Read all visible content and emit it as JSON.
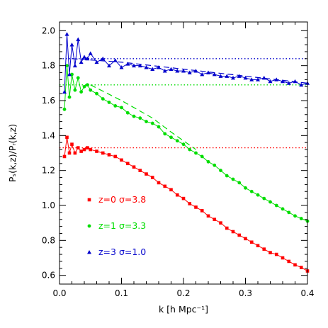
{
  "chart_data": {
    "type": "line",
    "xlabel": "k  [h Mpc⁻¹]",
    "ylabel": "Pₛ(k,z)/Pᵣ(k,z)",
    "xlim": [
      0.0,
      0.4
    ],
    "ylim": [
      0.55,
      2.05
    ],
    "x_ticks": [
      0.0,
      0.1,
      0.2,
      0.3,
      0.4
    ],
    "x_tick_labels": [
      "0.0",
      "0.1",
      "0.2",
      "0.3",
      "0.4"
    ],
    "y_ticks": [
      0.6,
      0.8,
      1.0,
      1.2,
      1.4,
      1.6,
      1.8,
      2.0
    ],
    "y_tick_labels": [
      "0.6",
      "0.8",
      "1.0",
      "1.2",
      "1.4",
      "1.6",
      "1.8",
      "2.0"
    ],
    "grid": false,
    "legend_position": "bottom-left",
    "series": [
      {
        "name": "z=0  σ=3.8",
        "color": "#ff0000",
        "marker": "square",
        "x": [
          0.008,
          0.012,
          0.016,
          0.02,
          0.025,
          0.03,
          0.035,
          0.04,
          0.045,
          0.05,
          0.06,
          0.07,
          0.08,
          0.09,
          0.1,
          0.11,
          0.12,
          0.13,
          0.14,
          0.15,
          0.16,
          0.17,
          0.18,
          0.19,
          0.2,
          0.21,
          0.22,
          0.23,
          0.24,
          0.25,
          0.26,
          0.27,
          0.28,
          0.29,
          0.3,
          0.31,
          0.32,
          0.33,
          0.34,
          0.35,
          0.36,
          0.37,
          0.38,
          0.39,
          0.4
        ],
        "y": [
          1.28,
          1.39,
          1.3,
          1.35,
          1.3,
          1.33,
          1.31,
          1.32,
          1.33,
          1.32,
          1.31,
          1.3,
          1.29,
          1.28,
          1.26,
          1.24,
          1.22,
          1.2,
          1.18,
          1.16,
          1.13,
          1.11,
          1.09,
          1.06,
          1.04,
          1.01,
          0.99,
          0.97,
          0.94,
          0.92,
          0.9,
          0.87,
          0.85,
          0.83,
          0.81,
          0.79,
          0.77,
          0.75,
          0.73,
          0.72,
          0.7,
          0.68,
          0.66,
          0.645,
          0.625
        ],
        "reference_level": 1.33,
        "reference_style": "dotted"
      },
      {
        "name": "z=1  σ=3.3",
        "color": "#00dd00",
        "marker": "circle",
        "x": [
          0.008,
          0.012,
          0.016,
          0.02,
          0.025,
          0.03,
          0.035,
          0.04,
          0.045,
          0.05,
          0.06,
          0.07,
          0.08,
          0.09,
          0.1,
          0.11,
          0.12,
          0.13,
          0.14,
          0.15,
          0.16,
          0.17,
          0.18,
          0.19,
          0.2,
          0.21,
          0.22,
          0.23,
          0.24,
          0.25,
          0.26,
          0.27,
          0.28,
          0.29,
          0.3,
          0.31,
          0.32,
          0.33,
          0.34,
          0.35,
          0.36,
          0.37,
          0.38,
          0.39,
          0.4
        ],
        "y": [
          1.55,
          1.8,
          1.62,
          1.75,
          1.66,
          1.73,
          1.65,
          1.68,
          1.69,
          1.66,
          1.64,
          1.61,
          1.59,
          1.57,
          1.56,
          1.53,
          1.51,
          1.5,
          1.48,
          1.47,
          1.45,
          1.41,
          1.39,
          1.37,
          1.35,
          1.32,
          1.3,
          1.28,
          1.25,
          1.23,
          1.2,
          1.17,
          1.15,
          1.13,
          1.1,
          1.08,
          1.06,
          1.04,
          1.02,
          1.0,
          0.98,
          0.96,
          0.94,
          0.925,
          0.91
        ],
        "model_x": [
          0.05,
          0.1,
          0.15,
          0.18,
          0.2,
          0.22
        ],
        "model_y": [
          1.69,
          1.6,
          1.5,
          1.42,
          1.37,
          1.32
        ],
        "reference_level": 1.69,
        "reference_style": "dotted"
      },
      {
        "name": "z=3  σ=1.0",
        "color": "#0000cc",
        "marker": "triangle",
        "x": [
          0.008,
          0.012,
          0.016,
          0.02,
          0.025,
          0.03,
          0.035,
          0.04,
          0.045,
          0.05,
          0.06,
          0.07,
          0.08,
          0.09,
          0.1,
          0.11,
          0.12,
          0.13,
          0.14,
          0.15,
          0.16,
          0.17,
          0.18,
          0.19,
          0.2,
          0.21,
          0.22,
          0.23,
          0.24,
          0.25,
          0.26,
          0.27,
          0.28,
          0.29,
          0.3,
          0.31,
          0.32,
          0.33,
          0.34,
          0.35,
          0.36,
          0.37,
          0.38,
          0.39,
          0.4
        ],
        "y": [
          1.65,
          1.98,
          1.75,
          1.92,
          1.8,
          1.95,
          1.82,
          1.85,
          1.84,
          1.87,
          1.82,
          1.84,
          1.8,
          1.83,
          1.79,
          1.81,
          1.8,
          1.8,
          1.79,
          1.78,
          1.79,
          1.77,
          1.78,
          1.77,
          1.77,
          1.76,
          1.77,
          1.75,
          1.76,
          1.75,
          1.74,
          1.74,
          1.73,
          1.74,
          1.73,
          1.72,
          1.72,
          1.73,
          1.71,
          1.72,
          1.71,
          1.7,
          1.71,
          1.69,
          1.7
        ],
        "model_x": [
          0.02,
          0.1,
          0.2,
          0.3,
          0.4
        ],
        "model_y": [
          1.84,
          1.82,
          1.78,
          1.74,
          1.7
        ],
        "reference_level": 1.84,
        "reference_style": "dotted"
      }
    ]
  }
}
